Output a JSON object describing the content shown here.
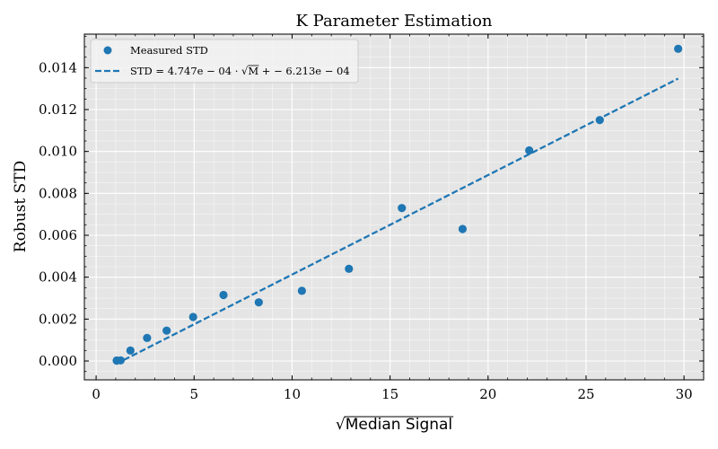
{
  "chart_data": {
    "type": "scatter",
    "title": "K Parameter Estimation",
    "xlabel": "Median Signal",
    "ylabel": "Robust STD",
    "xlim": [
      -0.6,
      31.0
    ],
    "ylim": [
      -0.0009,
      0.0156
    ],
    "xticks": [
      0,
      5,
      10,
      15,
      20,
      25,
      30
    ],
    "xtick_labels": [
      "0",
      "5",
      "10",
      "15",
      "20",
      "25",
      "30"
    ],
    "yticks": [
      0.0,
      0.002,
      0.004,
      0.006,
      0.008,
      0.01,
      0.012,
      0.014
    ],
    "ytick_labels": [
      "0.000",
      "0.002",
      "0.004",
      "0.006",
      "0.008",
      "0.010",
      "0.012",
      "0.014"
    ],
    "grid": true,
    "legend_position": "top-left",
    "series": [
      {
        "name": "Measured STD",
        "kind": "scatter",
        "color": "#1f77b4",
        "x": [
          1.05,
          1.25,
          1.75,
          2.6,
          3.6,
          4.95,
          6.5,
          8.3,
          10.5,
          12.9,
          15.6,
          18.7,
          22.1,
          25.7,
          29.7
        ],
        "y": [
          2e-05,
          3e-05,
          0.0005,
          0.0011,
          0.00145,
          0.0021,
          0.00315,
          0.0028,
          0.00335,
          0.0044,
          0.0073,
          0.0063,
          0.01005,
          0.0115,
          0.0149
        ]
      },
      {
        "name_parts": {
          "lhs": "STD",
          "eq": " = ",
          "coef": "4.747e − 04 · ",
          "sqrt_sign": "√",
          "radicand": "M",
          "rest": " + − 6.213e − 04"
        },
        "kind": "fit-line",
        "color": "#1f77b4",
        "linestyle": "dashed",
        "slope": 0.0004747,
        "intercept": -0.0006213,
        "x_range": [
          1.0,
          29.7
        ]
      }
    ]
  },
  "labels": {
    "xlabel_radical": "√"
  }
}
